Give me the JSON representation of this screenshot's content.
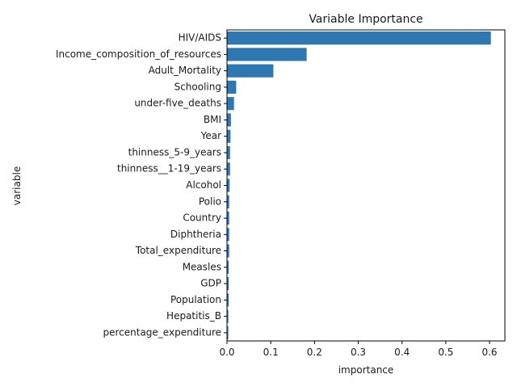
{
  "chart_data": {
    "type": "bar",
    "orientation": "horizontal",
    "title": "Variable Importance",
    "xlabel": "importance",
    "ylabel": "variable",
    "xlim": [
      0,
      0.635
    ],
    "xticks": [
      0.0,
      0.1,
      0.2,
      0.3,
      0.4,
      0.5,
      0.6
    ],
    "xtick_labels": [
      "0.0",
      "0.1",
      "0.2",
      "0.3",
      "0.4",
      "0.5",
      "0.6"
    ],
    "grid": false,
    "bar_color": "#2f77b0",
    "categories": [
      "HIV/AIDS",
      "Income_composition_of_resources",
      "Adult_Mortality",
      "Schooling",
      "under-five_deaths",
      "BMI",
      "Year",
      "thinness_5-9_years",
      "thinness__1-19_years",
      "Alcohol",
      "Polio",
      "Country",
      "Diphtheria",
      "Total_expenditure",
      "Measles",
      "GDP",
      "Population",
      "Hepatitis_B",
      "percentage_expenditure"
    ],
    "values": [
      0.603,
      0.182,
      0.106,
      0.021,
      0.016,
      0.009,
      0.008,
      0.007,
      0.007,
      0.006,
      0.005,
      0.005,
      0.005,
      0.005,
      0.004,
      0.004,
      0.004,
      0.003,
      0.003
    ]
  }
}
